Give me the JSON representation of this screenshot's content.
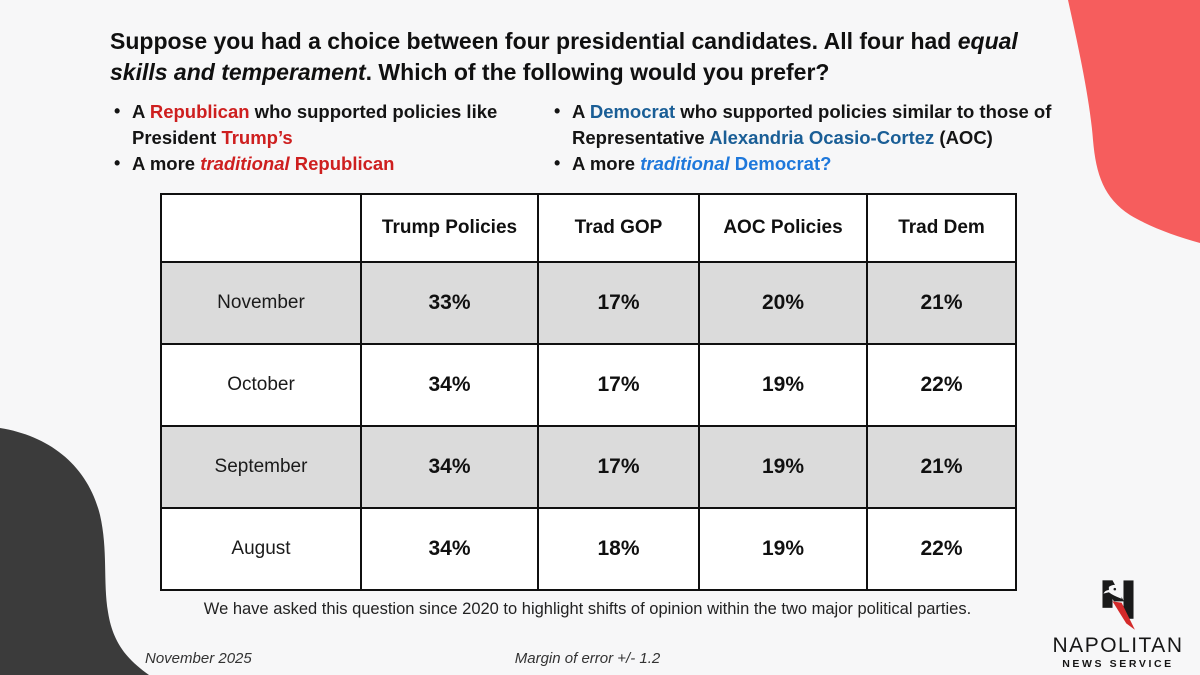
{
  "colors": {
    "background": "#F7F7F8",
    "blob_red": "#F65D5D",
    "blob_dark": "#3B3B3B",
    "republican_red": "#CE1F1F",
    "democrat_blue_dark": "#1A5E96",
    "democrat_blue_bright": "#1E78DB",
    "row_shade": "#DBDBDB",
    "table_border": "#101010"
  },
  "question": {
    "segments": [
      {
        "t": "Suppose you had a choice between four presidential candidates. All four had ",
        "cls": ""
      },
      {
        "t": "equal skills and temperament",
        "cls": "italic"
      },
      {
        "t": ". Which of the following would you prefer?",
        "cls": ""
      }
    ]
  },
  "options_left": {
    "bullet1": [
      {
        "t": "A ",
        "cls": ""
      },
      {
        "t": "Republican",
        "cls": "red"
      },
      {
        "t": " who supported policies like President ",
        "cls": ""
      },
      {
        "t": "Trump’s",
        "cls": "red"
      }
    ],
    "bullet2": [
      {
        "t": "A more ",
        "cls": ""
      },
      {
        "t": "traditional",
        "cls": "red italic"
      },
      {
        "t": " ",
        "cls": ""
      },
      {
        "t": "Republican",
        "cls": "red"
      }
    ]
  },
  "options_right": {
    "bullet1": [
      {
        "t": "A ",
        "cls": ""
      },
      {
        "t": "Democrat",
        "cls": "blue-dark"
      },
      {
        "t": " who supported policies similar to those of Representative ",
        "cls": ""
      },
      {
        "t": "Alexandria Ocasio-Cortez",
        "cls": "blue-dark"
      },
      {
        "t": " (AOC)",
        "cls": ""
      }
    ],
    "bullet2": [
      {
        "t": "A more ",
        "cls": ""
      },
      {
        "t": "traditional",
        "cls": "blue-bright italic"
      },
      {
        "t": " ",
        "cls": ""
      },
      {
        "t": "Democrat?",
        "cls": "blue-bright"
      }
    ]
  },
  "chart_data": {
    "type": "table",
    "title": "Preference among four presidential candidates",
    "headers": [
      "",
      "Trump Policies",
      "Trad GOP",
      "AOC Policies",
      "Trad Dem"
    ],
    "rows": [
      {
        "label": "November",
        "values": [
          "33%",
          "17%",
          "20%",
          "21%"
        ]
      },
      {
        "label": "October",
        "values": [
          "34%",
          "17%",
          "19%",
          "22%"
        ]
      },
      {
        "label": "September",
        "values": [
          "34%",
          "17%",
          "19%",
          "21%"
        ]
      },
      {
        "label": "August",
        "values": [
          "34%",
          "18%",
          "19%",
          "22%"
        ]
      }
    ]
  },
  "footnote": "We have asked this question since 2020 to highlight shifts of opinion within the two major political parties.",
  "footer": {
    "date": "November 2025",
    "margin_of_error": "Margin of error +/- 1.2"
  },
  "logo": {
    "name": "NAPOLITAN",
    "tagline": "NEWS SERVICE"
  }
}
